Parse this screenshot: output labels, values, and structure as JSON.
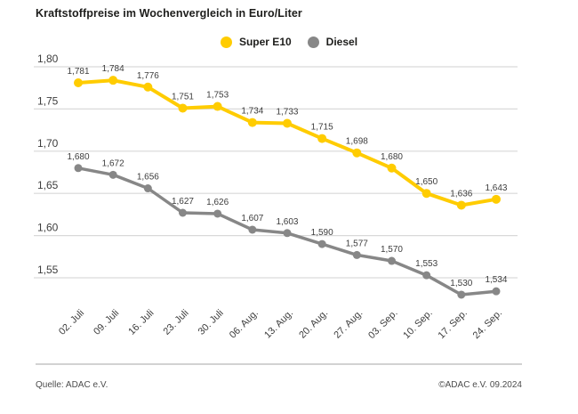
{
  "title": "Kraftstoffpreise im Wochenvergleich in Euro/Liter",
  "legend": [
    {
      "label": "Super E10",
      "color": "#FFCC00"
    },
    {
      "label": "Diesel",
      "color": "#878787"
    }
  ],
  "chart_data": {
    "type": "line",
    "title": "Kraftstoffpreise im Wochenvergleich in Euro/Liter",
    "unit": "Euro/Liter",
    "xlabel": "",
    "ylabel": "",
    "grid": "horizontal",
    "legend_position": "top-center",
    "categories": [
      "02. Juli",
      "09. Juli",
      "16. Juli",
      "23. Juli",
      "30. Juli",
      "06. Aug.",
      "13. Aug.",
      "20. Aug.",
      "27. Aug.",
      "03. Sep.",
      "10. Sep.",
      "17. Sep.",
      "24. Sep."
    ],
    "yticks": {
      "values": [
        1.8,
        1.75,
        1.7,
        1.65,
        1.6,
        1.55
      ],
      "labels": [
        "1,80",
        "1,75",
        "1,70",
        "1,65",
        "1,60",
        "1,55"
      ]
    },
    "ylim": [
      1.52,
      1.81
    ],
    "series": [
      {
        "name": "Super E10",
        "color": "#FFCC00",
        "values": [
          1.781,
          1.784,
          1.776,
          1.751,
          1.753,
          1.734,
          1.733,
          1.715,
          1.698,
          1.68,
          1.65,
          1.636,
          1.643
        ],
        "labels": [
          "1,781",
          "1,784",
          "1,776",
          "1,751",
          "1,753",
          "1,734",
          "1,733",
          "1,715",
          "1,698",
          "1,680",
          "1,650",
          "1,636",
          "1,643"
        ]
      },
      {
        "name": "Diesel",
        "color": "#878787",
        "values": [
          1.68,
          1.672,
          1.656,
          1.627,
          1.626,
          1.607,
          1.603,
          1.59,
          1.577,
          1.57,
          1.553,
          1.53,
          1.534
        ],
        "labels": [
          "1,680",
          "1,672",
          "1,656",
          "1,627",
          "1,626",
          "1,607",
          "1,603",
          "1,590",
          "1,577",
          "1,570",
          "1,553",
          "1,530",
          "1,534"
        ]
      }
    ]
  },
  "colors": {
    "grid": "#d9d9d9",
    "axis_text": "#3d3d3d",
    "point_label": "#3d3d3d",
    "separator": "#d2d2d2",
    "footer_text": "#4c4c4c"
  },
  "footer": {
    "source": "Quelle: ADAC e.V.",
    "copyright": "©ADAC e.V. 09.2024"
  }
}
